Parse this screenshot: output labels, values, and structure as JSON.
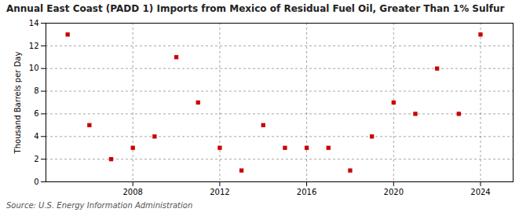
{
  "chart_data": {
    "type": "scatter",
    "title": "Annual East Coast (PADD 1) Imports from Mexico of Residual Fuel Oil, Greater Than 1% Sulfur",
    "ylabel": "Thousand Barrels per Day",
    "source": "Source: U.S. Energy Information Administration",
    "x": [
      2005,
      2006,
      2007,
      2008,
      2009,
      2010,
      2011,
      2012,
      2013,
      2014,
      2015,
      2016,
      2017,
      2018,
      2019,
      2020,
      2021,
      2022,
      2023,
      2024
    ],
    "values": [
      13,
      5,
      2,
      3,
      4,
      11,
      7,
      3,
      1,
      5,
      3,
      3,
      3,
      1,
      4,
      7,
      6,
      10,
      6,
      13
    ],
    "color": "#cc0000",
    "marker": "square",
    "xlim": [
      2004,
      2025.5
    ],
    "ylim": [
      0,
      14
    ],
    "xticks": [
      2008,
      2012,
      2016,
      2020,
      2024
    ],
    "yticks": [
      0,
      2,
      4,
      6,
      8,
      10,
      12,
      14
    ],
    "grid": true
  }
}
